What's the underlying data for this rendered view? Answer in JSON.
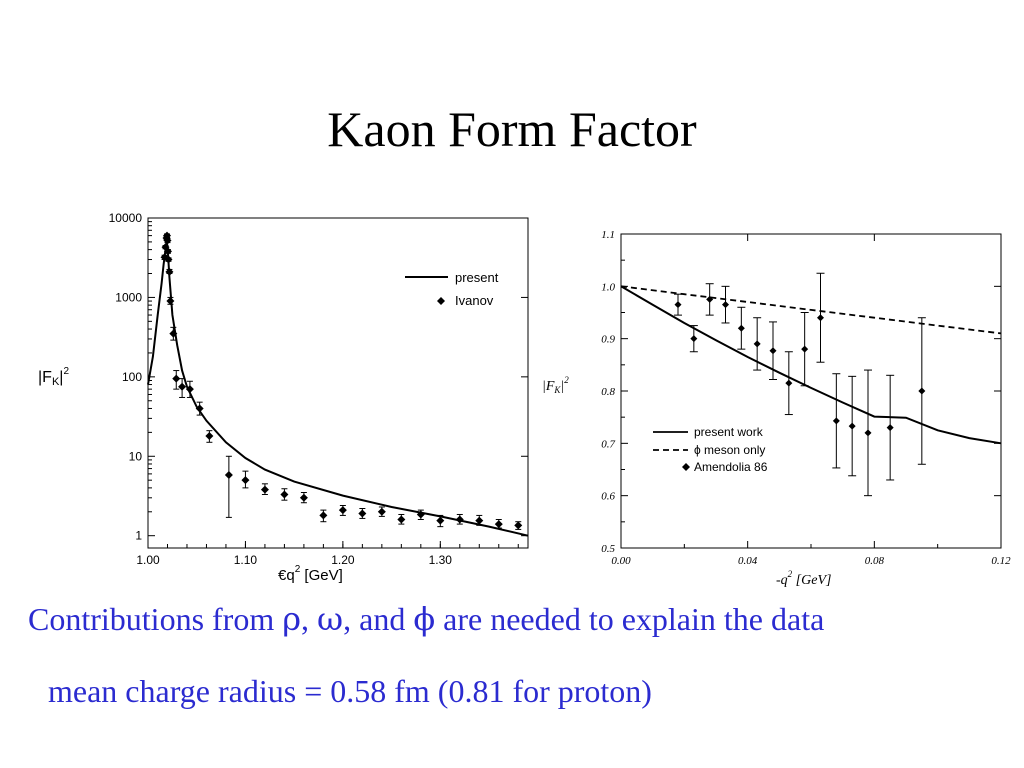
{
  "slide": {
    "title": "Kaon Form Factor",
    "caption1": {
      "prefix": "Contributions from ",
      "rho": "ρ",
      "sep1": ", ",
      "omega": "ω",
      "sep2": ", and ",
      "phi": "ϕ",
      "suffix": " are needed to explain the data"
    },
    "caption2": "mean charge radius = 0.58 fm  (0.81 for proton)"
  },
  "colors": {
    "caption": "#2b2bd0",
    "ink": "#000000"
  },
  "chart_data": [
    {
      "type": "line",
      "yscale": "log",
      "xlim": [
        1.0,
        1.39
      ],
      "ylim": [
        0.7,
        10000
      ],
      "x_ticks": [
        "1.00",
        "1.10",
        "1.20",
        "1.30"
      ],
      "x_tick_values": [
        1.0,
        1.1,
        1.2,
        1.3
      ],
      "y_ticks": [
        "1",
        "10",
        "100",
        "1000",
        "10000"
      ],
      "y_tick_values": [
        1,
        10,
        100,
        1000,
        10000
      ],
      "ylabel": "|FK|2",
      "xlabel": "€q  2 [GeV]",
      "legend": {
        "position": "top-right",
        "line_label": "present",
        "points_label": "Ivanov"
      },
      "series": [
        {
          "name": "present",
          "kind": "line",
          "x": [
            1.0,
            1.005,
            1.01,
            1.014,
            1.016,
            1.018,
            1.019,
            1.02,
            1.022,
            1.025,
            1.03,
            1.035,
            1.04,
            1.05,
            1.06,
            1.08,
            1.1,
            1.12,
            1.15,
            1.2,
            1.25,
            1.3,
            1.35,
            1.39
          ],
          "y": [
            80,
            180,
            600,
            1500,
            2600,
            4000,
            4800,
            4500,
            1800,
            600,
            250,
            120,
            75,
            42,
            28,
            15,
            9.5,
            6.8,
            4.8,
            3.2,
            2.3,
            1.75,
            1.3,
            1.0
          ]
        },
        {
          "name": "Ivanov",
          "kind": "points",
          "x": [
            1.017,
            1.018,
            1.019,
            1.0195,
            1.02,
            1.0205,
            1.021,
            1.022,
            1.023,
            1.026,
            1.029,
            1.035,
            1.043,
            1.053,
            1.063,
            1.083,
            1.1,
            1.12,
            1.14,
            1.16,
            1.18,
            1.2,
            1.22,
            1.24,
            1.26,
            1.28,
            1.3,
            1.32,
            1.34,
            1.36,
            1.38
          ],
          "y": [
            3200,
            4300,
            5600,
            6000,
            5200,
            3800,
            3000,
            2100,
            900,
            350,
            95,
            75,
            70,
            40,
            18,
            5.8,
            5,
            3.8,
            3.3,
            3.0,
            1.8,
            2.1,
            1.9,
            2.0,
            1.6,
            1.85,
            1.55,
            1.6,
            1.55,
            1.4,
            1.35
          ],
          "err_low": [
            3000,
            4100,
            5300,
            5700,
            4900,
            3600,
            2850,
            2000,
            820,
            290,
            70,
            55,
            55,
            33,
            15,
            1.7,
            4.0,
            3.3,
            2.8,
            2.6,
            1.5,
            1.8,
            1.65,
            1.75,
            1.4,
            1.6,
            1.3,
            1.4,
            1.35,
            1.25,
            1.2
          ],
          "err_high": [
            3400,
            4500,
            5900,
            6300,
            5500,
            4000,
            3150,
            2250,
            1000,
            420,
            120,
            95,
            88,
            48,
            21,
            10,
            6.5,
            4.5,
            3.9,
            3.5,
            2.1,
            2.4,
            2.2,
            2.3,
            1.85,
            2.1,
            1.8,
            1.85,
            1.8,
            1.6,
            1.5
          ]
        }
      ]
    },
    {
      "type": "line",
      "xlim": [
        0.0,
        0.12
      ],
      "ylim": [
        0.5,
        1.1
      ],
      "x_ticks": [
        "0.00",
        "0.04",
        "0.08",
        "0.12"
      ],
      "x_tick_values": [
        0.0,
        0.04,
        0.08,
        0.12
      ],
      "y_ticks": [
        "0.5",
        "0.6",
        "0.7",
        "0.8",
        "0.9",
        "1.0",
        "1.1"
      ],
      "y_tick_values": [
        0.5,
        0.6,
        0.7,
        0.8,
        0.9,
        1.0,
        1.1
      ],
      "ylabel": "|FK|2",
      "xlabel": "-q2 [GeV]",
      "legend": {
        "position": "bottom-left",
        "entries": [
          "present work",
          "ϕ meson only",
          "Amendolia 86"
        ]
      },
      "series": [
        {
          "name": "present work",
          "kind": "line",
          "x": [
            0.0,
            0.01,
            0.02,
            0.03,
            0.04,
            0.05,
            0.06,
            0.07,
            0.08,
            0.09,
            0.1,
            0.11,
            0.12
          ],
          "y": [
            1.0,
            0.965,
            0.93,
            0.897,
            0.865,
            0.835,
            0.806,
            0.778,
            0.751,
            0.749,
            0.725,
            0.71,
            0.7
          ]
        },
        {
          "name": "ϕ meson only",
          "kind": "dashed",
          "x": [
            0.0,
            0.02,
            0.04,
            0.06,
            0.08,
            0.1,
            0.12
          ],
          "y": [
            1.0,
            0.985,
            0.97,
            0.955,
            0.94,
            0.925,
            0.91
          ]
        },
        {
          "name": "Amendolia 86",
          "kind": "points",
          "x": [
            0.018,
            0.023,
            0.028,
            0.033,
            0.038,
            0.043,
            0.048,
            0.053,
            0.058,
            0.063,
            0.068,
            0.073,
            0.078,
            0.085,
            0.095
          ],
          "y": [
            0.965,
            0.9,
            0.975,
            0.965,
            0.92,
            0.89,
            0.877,
            0.815,
            0.88,
            0.94,
            0.743,
            0.733,
            0.72,
            0.73,
            0.8
          ],
          "err": [
            0.02,
            0.025,
            0.03,
            0.035,
            0.04,
            0.05,
            0.055,
            0.06,
            0.07,
            0.085,
            0.09,
            0.095,
            0.12,
            0.1,
            0.14
          ]
        }
      ]
    }
  ]
}
